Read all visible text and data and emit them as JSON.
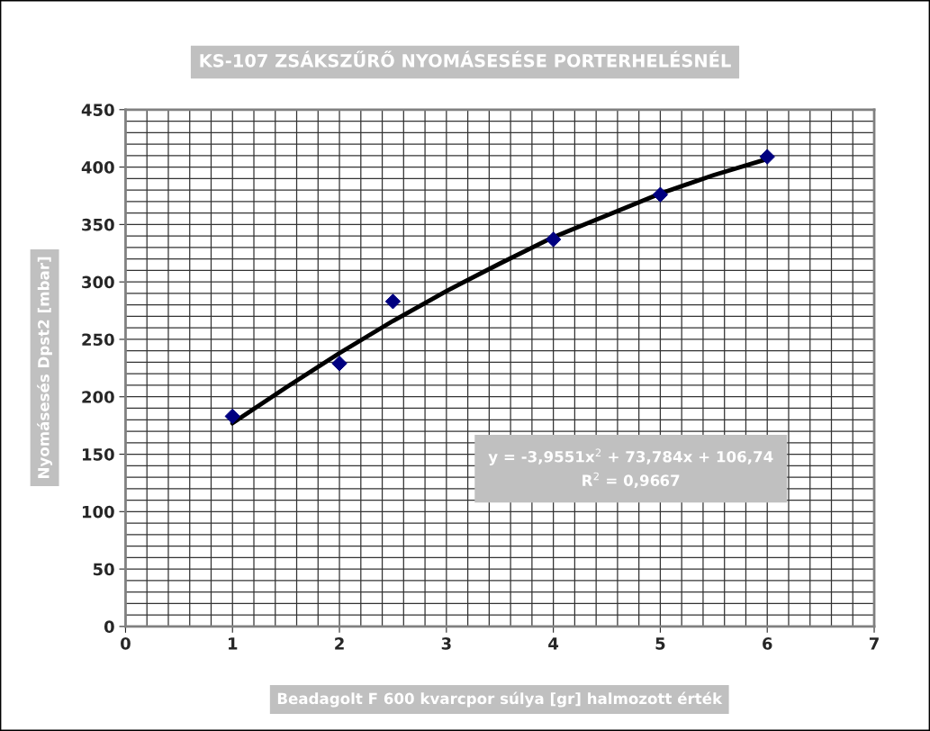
{
  "chart_data": {
    "type": "scatter",
    "title": "KS-107 ZSÁKSZŰRŐ NYOMÁSESÉSE PORTERHELÉSNÉL",
    "xlabel": "Beadagolt F 600 kvarcpor súlya [gr] halmozott érték",
    "ylabel": "Nyomásesés Dpst2 [mbar]",
    "annotations": [
      "y = -3,9551x$^{2}$ + 73,784x + 106,74",
      "R$^{2}$ = 0,9667"
    ],
    "series": [
      {
        "color": "#000080",
        "marker": "diamond",
        "x": [
          1,
          2,
          2.5,
          4,
          5,
          6
        ],
        "values": [
          183,
          229,
          283,
          337,
          376,
          409
        ]
      },
      {
        "type": "line",
        "color": "#000000",
        "marker": "none",
        "line_style": "solid",
        "x": [
          1,
          1.5,
          2,
          2.5,
          3,
          3.5,
          4,
          4.5,
          5,
          5.5,
          6
        ],
        "values": [
          177,
          208,
          238,
          266,
          292,
          316,
          339,
          358,
          377,
          393,
          407
        ]
      }
    ],
    "xlim": [
      0,
      7
    ],
    "ylim": [
      0,
      450
    ],
    "xticks": [
      0,
      1,
      2,
      3,
      4,
      5,
      6,
      7
    ],
    "yticks": [
      0,
      50,
      100,
      150,
      200,
      250,
      300,
      350,
      400,
      450
    ],
    "grid": true,
    "legend": false
  }
}
